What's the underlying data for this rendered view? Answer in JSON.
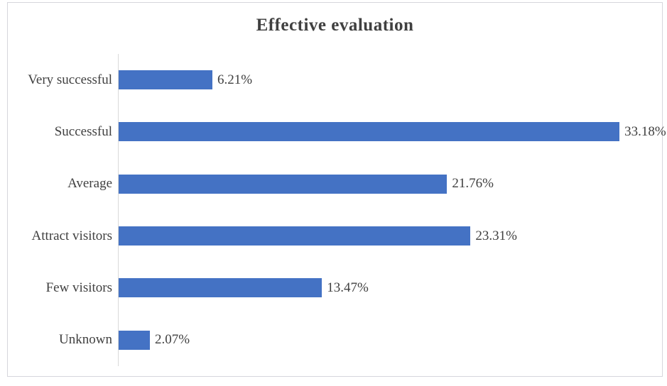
{
  "title": "Effective evaluation",
  "chart_data": {
    "type": "bar",
    "orientation": "horizontal",
    "title": "Effective evaluation",
    "xlabel": "",
    "ylabel": "",
    "categories": [
      "Very successful",
      "Successful",
      "Average",
      "Attract visitors",
      "Few visitors",
      "Unknown"
    ],
    "values": [
      6.21,
      33.18,
      21.76,
      23.31,
      13.47,
      2.07
    ],
    "data_labels": [
      "6.21%",
      "33.18%",
      "21.76%",
      "23.31%",
      "13.47%",
      "2.07%"
    ],
    "xlim": [
      0,
      36
    ],
    "grid": false,
    "legend": false,
    "bar_color": "#4472C4",
    "text_color": "#404040",
    "axis_line_color": "#D9D9D9",
    "frame_border_color": "#D6D6DC"
  }
}
